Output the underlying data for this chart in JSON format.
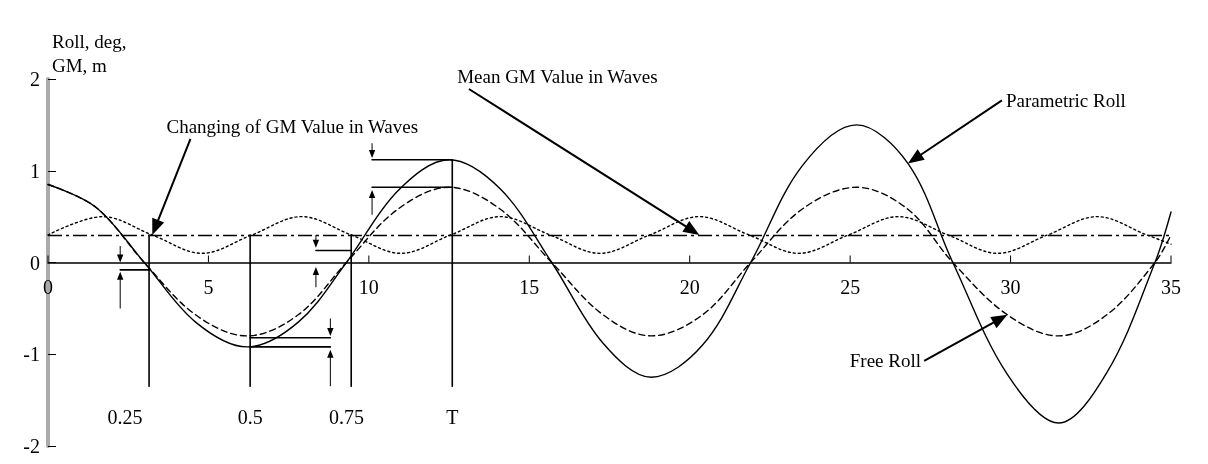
{
  "chart_data": {
    "type": "line",
    "ylabel": "Roll, deg,\nGM, m",
    "xlim": [
      0,
      35
    ],
    "xticks": [
      0,
      5,
      10,
      15,
      20,
      25,
      30,
      35
    ],
    "ylim": [
      -2,
      2
    ],
    "yticks": [
      -2,
      -1,
      0,
      1,
      2
    ],
    "grid": false,
    "marker": "none",
    "series": [
      {
        "color": "#000000",
        "line_style": "solid",
        "x": [
          0,
          1.5,
          3,
          4.6,
          6.2,
          7.8,
          9.3,
          10.9,
          12.5,
          14.1,
          15.7,
          17.3,
          18.8,
          20.4,
          21.9,
          23.5,
          25.2,
          26.8,
          28.2,
          29.9,
          31.5,
          33,
          34.5,
          35
        ],
        "values": [
          0.85,
          0.6,
          0,
          -0.65,
          -0.92,
          -0.65,
          0,
          0.78,
          1.12,
          0.8,
          0,
          -0.88,
          -1.25,
          -0.9,
          0,
          1.05,
          1.5,
          1.08,
          0,
          -1.22,
          -1.75,
          -1.2,
          0,
          0.55
        ]
      },
      {
        "color": "#000000",
        "line_style": "dashed",
        "x": [
          0,
          1.5,
          3,
          4.6,
          6.2,
          7.8,
          9.3,
          10.9,
          12.5,
          14.1,
          15.7,
          17.3,
          18.8,
          20.4,
          21.9,
          23.5,
          25.2,
          26.8,
          28.2,
          29.9,
          31.5,
          33,
          34.5,
          35
        ],
        "values": [
          0.85,
          0.6,
          0,
          -0.57,
          -0.8,
          -0.57,
          0,
          0.58,
          0.82,
          0.58,
          0,
          -0.57,
          -0.8,
          -0.57,
          0,
          0.58,
          0.82,
          0.58,
          0,
          -0.57,
          -0.8,
          -0.57,
          0,
          0.3
        ]
      },
      {
        "color": "#000000",
        "line_style": "dotted",
        "x": [
          0,
          1.7,
          3.25,
          4.8,
          6.35,
          7.9,
          9.45,
          11,
          12.55,
          14.1,
          15.65,
          17.2,
          18.75,
          20.3,
          21.85,
          23.4,
          24.95,
          26.5,
          28.05,
          29.6,
          31.15,
          32.7,
          34.25,
          35
        ],
        "values": [
          0.3,
          0.5,
          0.3,
          0.1,
          0.3,
          0.5,
          0.3,
          0.1,
          0.3,
          0.5,
          0.3,
          0.1,
          0.3,
          0.5,
          0.3,
          0.1,
          0.3,
          0.5,
          0.3,
          0.1,
          0.3,
          0.5,
          0.3,
          0.2
        ]
      },
      {
        "color": "#000000",
        "line_style": "solid",
        "x": [
          3.15,
          3.15
        ],
        "values": [
          0.3,
          -1.35
        ]
      },
      {
        "color": "#000000",
        "line_style": "solid",
        "x": [
          6.3,
          6.3
        ],
        "values": [
          0.3,
          -1.35
        ]
      },
      {
        "color": "#000000",
        "line_style": "solid",
        "x": [
          9.45,
          9.45
        ],
        "values": [
          0.3,
          -1.35
        ]
      },
      {
        "color": "#000000",
        "line_style": "solid",
        "x": [
          12.6,
          12.6
        ],
        "values": [
          1.12,
          -1.35
        ]
      },
      {
        "color": "#000000",
        "line_style": "solid",
        "x": [
          2.25,
          3.15
        ],
        "values": [
          -0.08,
          -0.08
        ]
      },
      {
        "color": "#000000",
        "line_style": "solid",
        "x": [
          8.35,
          9.45
        ],
        "values": [
          0.13,
          0.13
        ]
      },
      {
        "color": "#000000",
        "line_style": "solid",
        "x": [
          6.3,
          8.8
        ],
        "values": [
          -0.82,
          -0.82
        ]
      },
      {
        "color": "#000000",
        "line_style": "solid",
        "x": [
          6.3,
          8.8
        ],
        "values": [
          -0.92,
          -0.92
        ]
      },
      {
        "color": "#000000",
        "line_style": "solid",
        "x": [
          10.1,
          12.6
        ],
        "values": [
          1.12,
          1.12
        ]
      },
      {
        "color": "#000000",
        "line_style": "solid",
        "x": [
          10.1,
          12.6
        ],
        "values": [
          0.82,
          0.82
        ]
      }
    ],
    "ref_lines": [
      {
        "axis": "y",
        "value": 0.3,
        "color": "#000000",
        "line_style": "dashed"
      }
    ],
    "annotations": [
      "Changing of GM Value in Waves",
      "Mean GM Value in Waves",
      "Parametric Roll",
      "Free Roll",
      "0.25",
      "0.5",
      "0.75",
      "T"
    ]
  }
}
